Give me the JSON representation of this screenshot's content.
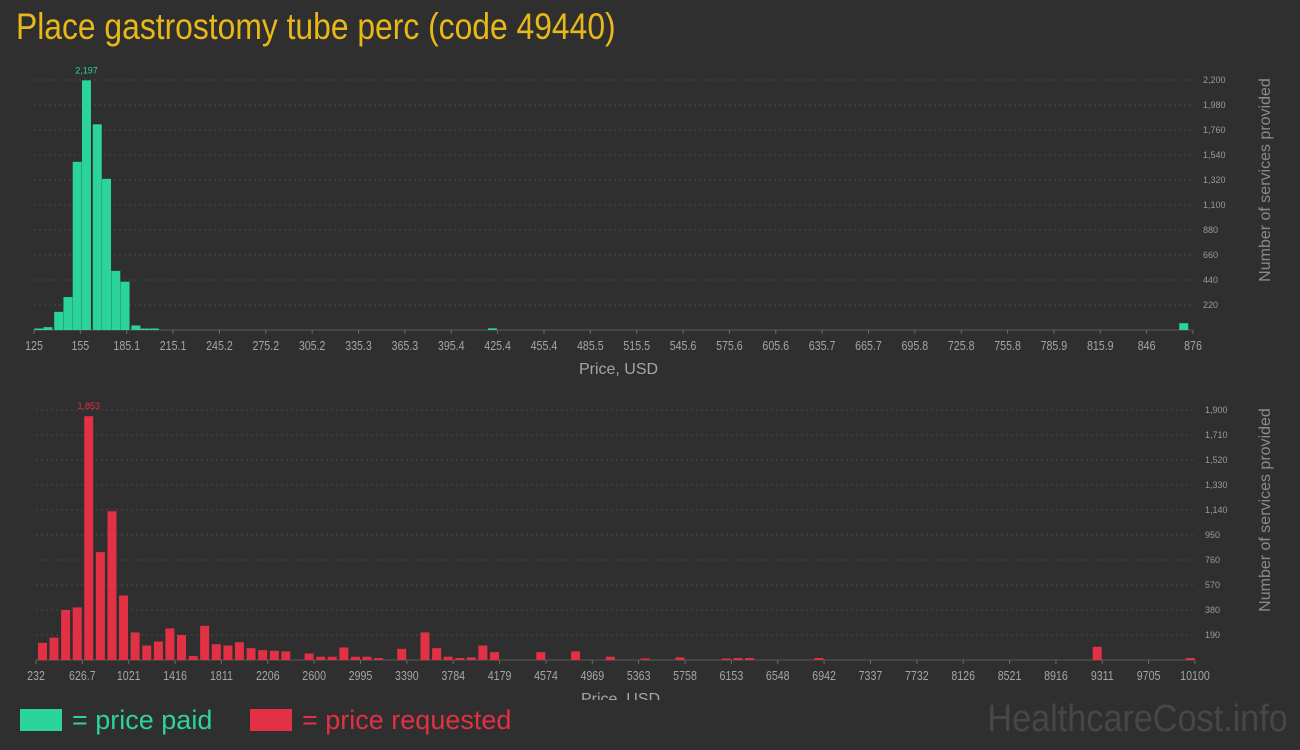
{
  "title": "Place gastrostomy tube perc (code 49440)",
  "legend": {
    "paid_label": "= price paid",
    "requested_label": "= price requested"
  },
  "brand": "HealthcareCost.info",
  "colors": {
    "paid": "#2ad49a",
    "requested": "#e23044",
    "title": "#e8b818",
    "background": "#2f2f2f"
  },
  "chart_data": [
    {
      "type": "bar",
      "series_name": "price paid",
      "xlabel": "Price, USD",
      "ylabel": "Number of services provided",
      "x_ticks": [
        "125",
        "155",
        "185.1",
        "215.1",
        "245.2",
        "275.2",
        "305.2",
        "335.3",
        "365.3",
        "395.4",
        "425.4",
        "455.4",
        "485.5",
        "515.5",
        "545.6",
        "575.6",
        "605.6",
        "635.7",
        "665.7",
        "695.8",
        "725.8",
        "755.8",
        "785.9",
        "815.9",
        "846",
        "876"
      ],
      "x_range": [
        125,
        876
      ],
      "y_ticks": [
        "220",
        "440",
        "660",
        "880",
        "1,100",
        "1,320",
        "1,540",
        "1,760",
        "1,980",
        "2,200"
      ],
      "ylim": [
        0,
        2200
      ],
      "peak_label": "2,197",
      "bins_x": [
        128,
        134,
        141,
        147,
        153,
        159,
        166,
        172,
        178,
        184,
        191,
        197,
        203,
        422,
        870
      ],
      "values": [
        10,
        25,
        160,
        290,
        1480,
        2197,
        1810,
        1330,
        520,
        425,
        40,
        2,
        2,
        15,
        60
      ]
    },
    {
      "type": "bar",
      "series_name": "price requested",
      "xlabel": "Price, USD",
      "ylabel": "Number of services provided",
      "x_ticks": [
        "232",
        "626.7",
        "1021",
        "1416",
        "1811",
        "2206",
        "2600",
        "2995",
        "3390",
        "3784",
        "4179",
        "4574",
        "4969",
        "5363",
        "5758",
        "6153",
        "6548",
        "6942",
        "7337",
        "7732",
        "8126",
        "8521",
        "8916",
        "9311",
        "9705",
        "10100"
      ],
      "x_range": [
        232,
        10100
      ],
      "y_ticks": [
        "190",
        "380",
        "570",
        "760",
        "950",
        "1,140",
        "1,330",
        "1,520",
        "1,710",
        "1,900"
      ],
      "ylim": [
        0,
        1900
      ],
      "peak_label": "1,853",
      "bins_x": [
        287,
        385,
        484,
        583,
        681,
        780,
        879,
        977,
        1076,
        1175,
        1274,
        1372,
        1471,
        1570,
        1668,
        1767,
        1866,
        1964,
        2063,
        2162,
        2261,
        2359,
        2458,
        2557,
        2656,
        2754,
        2853,
        2952,
        3050,
        3149,
        3248,
        3346,
        3445,
        3544,
        3643,
        3741,
        3840,
        3939,
        4037,
        4136,
        4530,
        4826,
        5122,
        5418,
        5714,
        6108,
        6208,
        6307,
        6899,
        9267,
        10060
      ],
      "values": [
        130,
        170,
        380,
        400,
        1853,
        820,
        1130,
        490,
        210,
        110,
        140,
        240,
        190,
        30,
        260,
        120,
        110,
        135,
        90,
        75,
        70,
        65,
        0,
        50,
        25,
        25,
        95,
        25,
        25,
        15,
        0,
        85,
        0,
        210,
        90,
        25,
        15,
        20,
        110,
        60,
        60,
        65,
        25,
        10,
        20,
        10,
        15,
        15,
        15,
        100,
        15
      ]
    }
  ]
}
